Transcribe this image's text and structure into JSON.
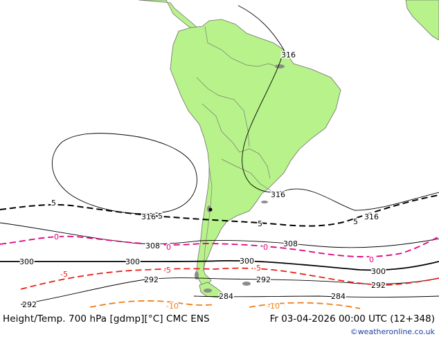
{
  "chart": {
    "title": "Height/Temp. 700 hPa [gdmp][°C] CMC ENS",
    "valid_time": "Fr 03-04-2026 00:00 UTC (12+348)",
    "credit": "©weatheronline.co.uk"
  },
  "contours": {
    "height_labels": [
      "316",
      "316",
      "316",
      "316",
      "308",
      "308",
      "300",
      "300",
      "300",
      "300",
      "292",
      "292",
      "292",
      "292",
      "284",
      "284"
    ],
    "temperature_labels": [
      "5",
      "5",
      "5",
      "5",
      "0",
      "0",
      "0",
      "0",
      "-5",
      "-5",
      "-5",
      "-10",
      "-10"
    ]
  },
  "colors": {
    "land": "#b8f28a",
    "ocean": "#ffffff",
    "height": "#000000",
    "temp_plus5": "#000000",
    "temp_zero": "#e0007f",
    "temp_minus5": "#e8201a",
    "temp_minus10": "#f07c15"
  }
}
